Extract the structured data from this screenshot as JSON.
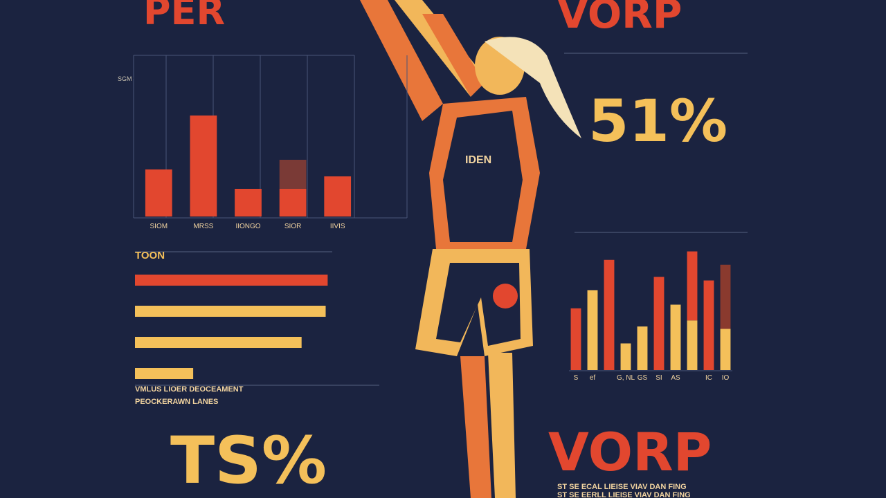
{
  "headings": {
    "per": "PER",
    "vorp_top": "VORP",
    "pct": "51%",
    "ts": "TS%",
    "vorp_bottom": "VORP",
    "jersey": "IDEN"
  },
  "caption": [
    "VMLUS LIOER DEOCEAMENT",
    "PEOCKERAWN LANES"
  ],
  "footnote": [
    "ST SE ECAL LIEISE VIAV DAN FING",
    "ST SE EERLL LIEISE VIAV DAN FING"
  ],
  "chart_data": [
    {
      "type": "bar",
      "categories": [
        "SIOM",
        "MRSS",
        "IIONGO",
        "SIOR",
        "IIVIS"
      ],
      "series": [
        {
          "color": "#e2472f",
          "values": [
            34,
            73,
            20,
            20,
            29
          ]
        },
        {
          "color": "#7a3a36",
          "values": [
            null,
            null,
            null,
            21,
            null
          ]
        }
      ],
      "stacked": true,
      "ylim": [
        0,
        100
      ],
      "yticks": [
        {
          "value": 100,
          "label": "SGM"
        }
      ]
    },
    {
      "type": "hbar",
      "title": "TOON",
      "values": [
        96,
        95,
        83,
        29
      ],
      "colors": [
        "#e2472f",
        "#f4c05a",
        "#f4c05a",
        "#f4c05a"
      ],
      "xlim": [
        0,
        100
      ]
    },
    {
      "type": "bar",
      "categories": [
        "S",
        "ef",
        null,
        "G, NL",
        "GS",
        "SI",
        "AS",
        null,
        "IC",
        "IO"
      ],
      "series": [
        {
          "colors": [
            "#e2472f",
            "#f4c05a",
            "#e2472f",
            "#f4c05a",
            "#f4c05a",
            "#e2472f",
            "#f4c05a",
            "#f4c05a",
            "#e2472f",
            "#f4c05a"
          ],
          "values": [
            51,
            66,
            91,
            22,
            36,
            77,
            54,
            41,
            74,
            34
          ]
        },
        {
          "colors": [
            null,
            null,
            null,
            null,
            null,
            null,
            null,
            "#e2472f",
            null,
            "#8a3a2e"
          ],
          "values": [
            null,
            null,
            null,
            null,
            null,
            null,
            null,
            57,
            null,
            53
          ]
        }
      ],
      "stacked": true,
      "ylim": [
        0,
        100
      ]
    }
  ]
}
